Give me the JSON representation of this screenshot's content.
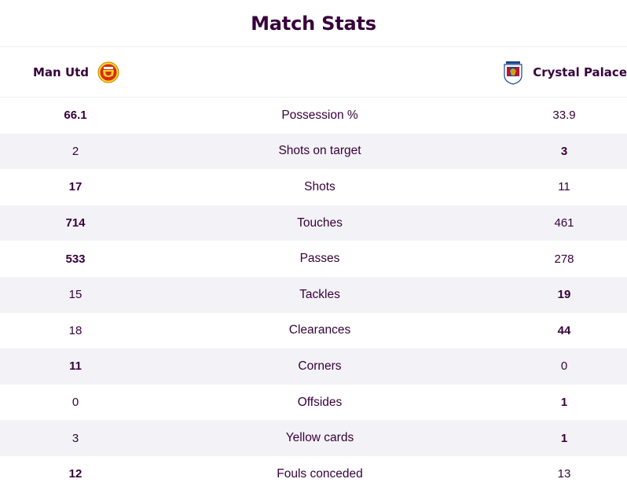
{
  "title": "Match Stats",
  "home_team": {
    "name": "Man Utd",
    "crest_icon": "man-utd-crest-icon",
    "crest_color": "#da291c"
  },
  "away_team": {
    "name": "Crystal Palace",
    "crest_icon": "crystal-palace-crest-icon",
    "crest_color": "#1b458f"
  },
  "stats": [
    {
      "label": "Possession %",
      "home": "66.1",
      "away": "33.9",
      "leader": "home"
    },
    {
      "label": "Shots on target",
      "home": "2",
      "away": "3",
      "leader": "away"
    },
    {
      "label": "Shots",
      "home": "17",
      "away": "11",
      "leader": "home"
    },
    {
      "label": "Touches",
      "home": "714",
      "away": "461",
      "leader": "home"
    },
    {
      "label": "Passes",
      "home": "533",
      "away": "278",
      "leader": "home"
    },
    {
      "label": "Tackles",
      "home": "15",
      "away": "19",
      "leader": "away"
    },
    {
      "label": "Clearances",
      "home": "18",
      "away": "44",
      "leader": "away"
    },
    {
      "label": "Corners",
      "home": "11",
      "away": "0",
      "leader": "home"
    },
    {
      "label": "Offsides",
      "home": "0",
      "away": "1",
      "leader": "away"
    },
    {
      "label": "Yellow cards",
      "home": "3",
      "away": "1",
      "leader": "away"
    },
    {
      "label": "Fouls conceded",
      "home": "12",
      "away": "13",
      "leader": "home"
    }
  ],
  "colors": {
    "text": "#37003c",
    "stripe": "#f3f2f6",
    "divider": "#efefef"
  }
}
